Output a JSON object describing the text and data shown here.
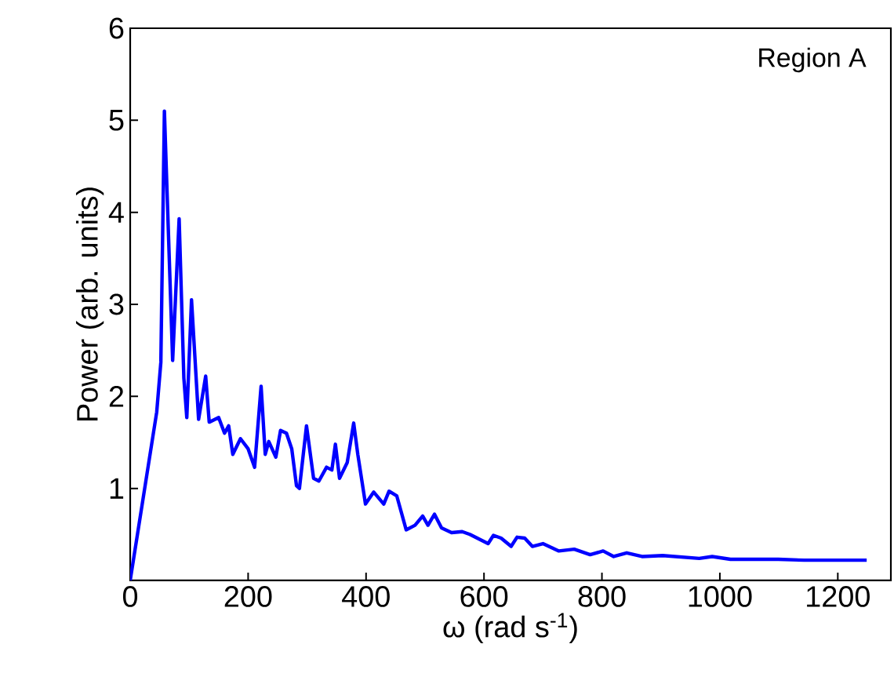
{
  "chart_data": {
    "type": "line",
    "xlabel": "ω (rad s$^{-1}$)",
    "ylabel": "Power (arb. units)",
    "annotations": [
      "Region A"
    ],
    "xlim": [
      0,
      1290
    ],
    "ylim": [
      0,
      6
    ],
    "xticks": [
      0,
      200,
      400,
      600,
      800,
      1000,
      1200
    ],
    "yticks": [
      1,
      2,
      3,
      4,
      5,
      6
    ],
    "grid": false,
    "marker": "none",
    "line_style": "solid",
    "series": [
      {
        "color": "#0000ff",
        "x": [
          0,
          45,
          52,
          58,
          72,
          83,
          91,
          96,
          104,
          116,
          128,
          134,
          150,
          160,
          167,
          174,
          187,
          200,
          211,
          222,
          229,
          235,
          247,
          255,
          265,
          274,
          282,
          287,
          299,
          311,
          320,
          333,
          342,
          348,
          355,
          368,
          379,
          386,
          399,
          413,
          430,
          439,
          452,
          468,
          483,
          496,
          505,
          516,
          528,
          545,
          563,
          576,
          607,
          616,
          629,
          646,
          656,
          669,
          682,
          700,
          727,
          753,
          780,
          802,
          820,
          842,
          868,
          903,
          965,
          987,
          1018,
          1054,
          1099,
          1143,
          1187,
          1249
        ],
        "values": [
          0,
          1.83,
          2.37,
          5.1,
          2.39,
          3.93,
          2.2,
          1.77,
          3.05,
          1.75,
          2.22,
          1.72,
          1.77,
          1.6,
          1.68,
          1.37,
          1.54,
          1.43,
          1.23,
          2.11,
          1.37,
          1.51,
          1.34,
          1.63,
          1.6,
          1.43,
          1.03,
          1.0,
          1.68,
          1.11,
          1.08,
          1.23,
          1.2,
          1.48,
          1.11,
          1.28,
          1.71,
          1.37,
          0.83,
          0.96,
          0.83,
          0.97,
          0.92,
          0.55,
          0.6,
          0.7,
          0.6,
          0.72,
          0.57,
          0.52,
          0.53,
          0.5,
          0.4,
          0.49,
          0.46,
          0.37,
          0.47,
          0.46,
          0.37,
          0.4,
          0.32,
          0.34,
          0.28,
          0.32,
          0.26,
          0.3,
          0.26,
          0.27,
          0.24,
          0.26,
          0.23,
          0.23,
          0.23,
          0.22,
          0.22,
          0.22
        ]
      }
    ]
  }
}
